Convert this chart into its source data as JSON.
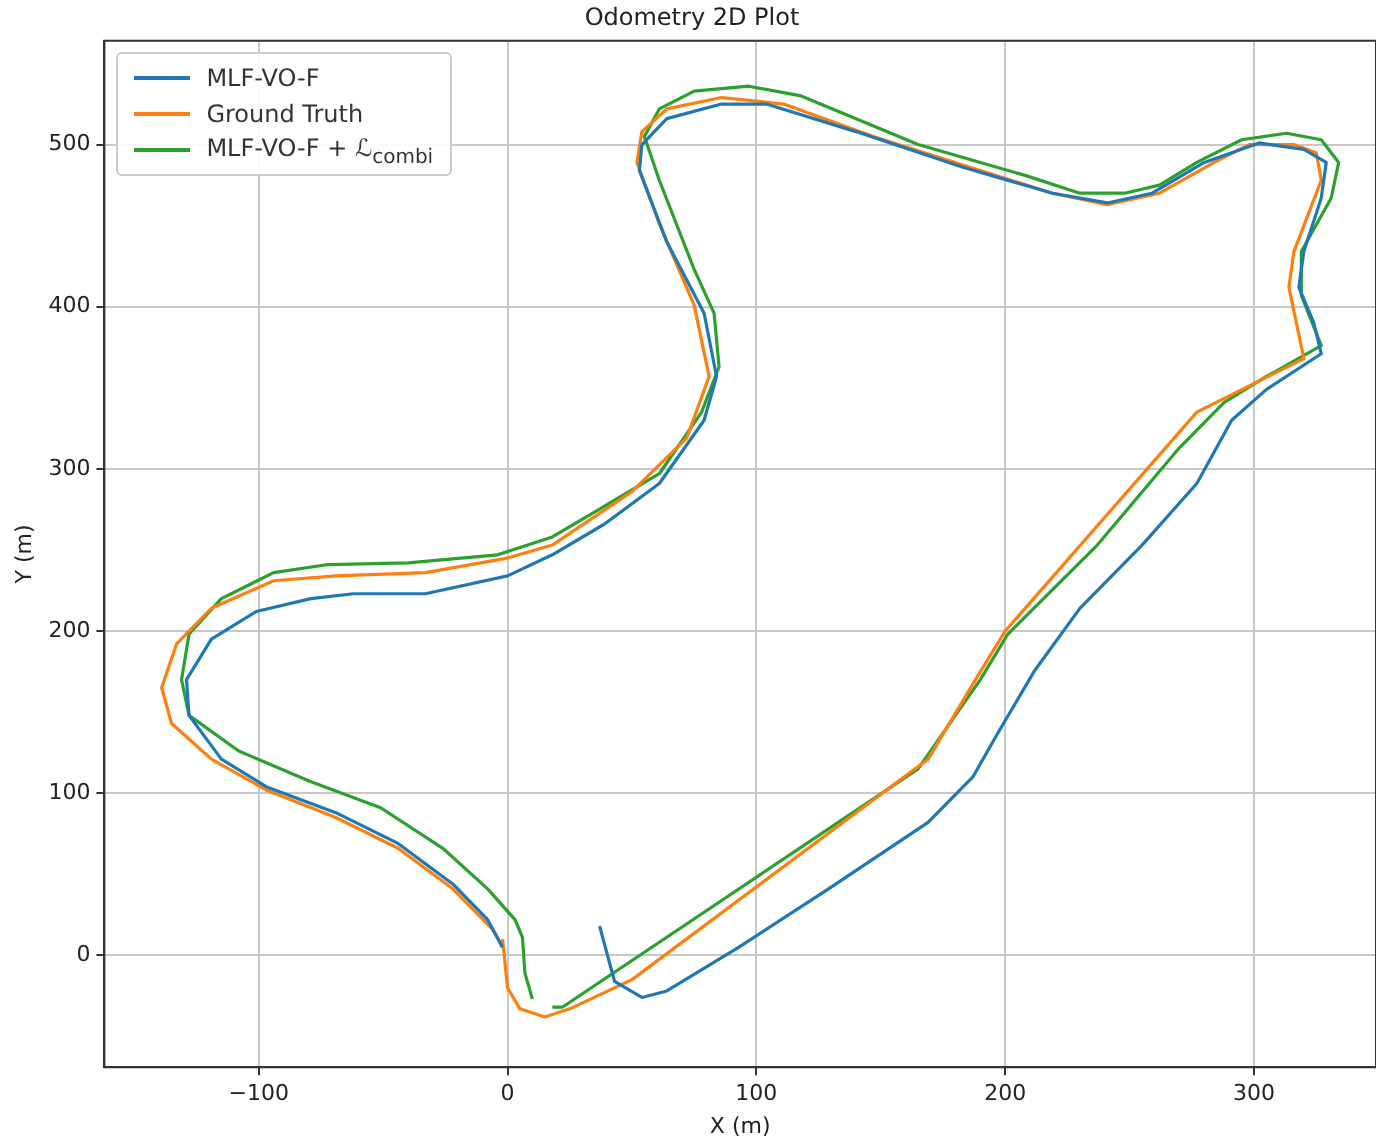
{
  "chart_data": {
    "type": "line",
    "title": "Odometry 2D Plot",
    "xlabel": "X (m)",
    "ylabel": "Y (m)",
    "xlim": [
      -162,
      349
    ],
    "ylim": [
      -69,
      564
    ],
    "xticks": [
      -100,
      0,
      100,
      200,
      300
    ],
    "yticks": [
      0,
      100,
      200,
      300,
      400,
      500
    ],
    "grid": true,
    "legend": "top left",
    "marker": "none",
    "line_style": "solid",
    "series": [
      {
        "name": "MLF-VO-F",
        "color": "#1f77b4",
        "x": [
          37,
          43,
          54,
          64,
          93,
          129,
          169,
          187,
          197,
          212,
          230,
          255,
          277,
          291,
          305,
          327,
          324,
          318,
          320,
          327,
          329,
          320,
          302,
          280,
          259,
          241,
          219,
          183,
          140,
          104,
          86,
          64,
          54,
          53,
          64,
          79,
          84,
          79,
          61,
          39,
          18,
          0,
          -33,
          -62,
          -79,
          -101,
          -119,
          -129,
          -128,
          -115,
          -97,
          -69,
          -44,
          -22,
          -8,
          -2
        ],
        "values": [
          18,
          -16,
          -26,
          -22,
          5,
          41,
          82,
          110,
          137,
          176,
          214,
          253,
          291,
          330,
          349,
          371,
          390,
          412,
          434,
          467,
          489,
          497,
          501,
          489,
          470,
          464,
          470,
          486,
          508,
          525,
          525,
          516,
          500,
          484,
          440,
          396,
          357,
          330,
          291,
          266,
          247,
          234,
          223,
          223,
          220,
          212,
          195,
          170,
          148,
          121,
          104,
          88,
          69,
          44,
          22,
          5
        ]
      },
      {
        "name": "Ground Truth",
        "color": "#ff7f0e",
        "x": [
          -2,
          0,
          5,
          15,
          25,
          50,
          169,
          190,
          200,
          277,
          320,
          314,
          316,
          327,
          325,
          316,
          298,
          284,
          262,
          241,
          219,
          190,
          147,
          111,
          86,
          64,
          54,
          52,
          61,
          75,
          81,
          72,
          50,
          18,
          0,
          -33,
          -69,
          -94,
          -119,
          -133,
          -139,
          -135,
          -119,
          -97,
          -69,
          -44,
          -22,
          -6,
          -2
        ],
        "values": [
          10,
          -20,
          -33,
          -38,
          -33,
          -15,
          121,
          175,
          200,
          335,
          368,
          412,
          434,
          478,
          495,
          500,
          500,
          489,
          470,
          463,
          470,
          484,
          505,
          525,
          529,
          522,
          508,
          489,
          451,
          401,
          357,
          319,
          286,
          253,
          245,
          236,
          234,
          231,
          214,
          192,
          165,
          143,
          121,
          102,
          85,
          66,
          41,
          16,
          5
        ]
      },
      {
        "name": "MLF-VO-F + ℒ$_{combi}$",
        "color": "#2ca02c",
        "x": [
          18,
          22,
          165,
          190,
          201,
          237,
          270,
          288,
          305,
          327,
          319,
          319,
          331,
          334,
          327,
          313,
          295,
          277,
          262,
          248,
          230,
          208,
          165,
          118,
          97,
          75,
          61,
          55,
          61,
          75,
          83,
          85,
          78,
          61,
          39,
          18,
          -4,
          -40,
          -72,
          -94,
          -115,
          -128,
          -131,
          -128,
          -108,
          -79,
          -51,
          -26,
          -8,
          3,
          6,
          7,
          10
        ],
        "values": [
          -32,
          -32,
          115,
          170,
          198,
          253,
          313,
          341,
          357,
          376,
          407,
          434,
          467,
          489,
          503,
          507,
          503,
          489,
          475,
          470,
          470,
          481,
          500,
          530,
          536,
          533,
          522,
          505,
          478,
          423,
          396,
          363,
          335,
          297,
          277,
          258,
          247,
          242,
          241,
          236,
          220,
          198,
          170,
          148,
          126,
          107,
          91,
          66,
          41,
          22,
          11,
          -11,
          -27
        ]
      }
    ]
  }
}
